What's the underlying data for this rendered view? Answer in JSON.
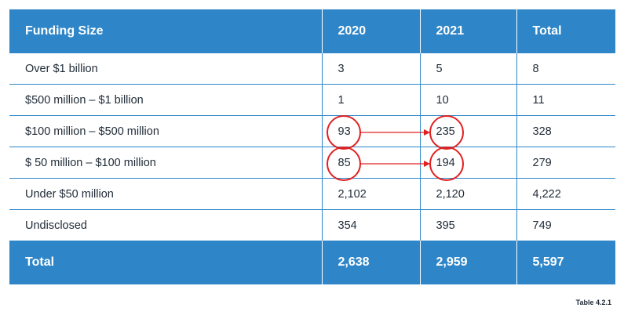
{
  "table": {
    "headers": [
      "Funding Size",
      "2020",
      "2021",
      "Total"
    ],
    "rows": [
      [
        "Over $1 billion",
        "3",
        "5",
        "8"
      ],
      [
        "$500 million – $1 billion",
        "1",
        "10",
        "11"
      ],
      [
        "$100 million – $500 million",
        "93",
        "235",
        "328"
      ],
      [
        "$ 50 million – $100 million",
        "85",
        "194",
        "279"
      ],
      [
        "Under $50 million",
        "2,102",
        "2,120",
        "4,222"
      ],
      [
        "Undisclosed",
        "354",
        "395",
        "749"
      ]
    ],
    "total_row": [
      "Total",
      "2,638",
      "2,959",
      "5,597"
    ]
  },
  "caption": "Table 4.2.1",
  "colors": {
    "header_blue": "#2e86c8",
    "annotation_red": "#e02020"
  }
}
